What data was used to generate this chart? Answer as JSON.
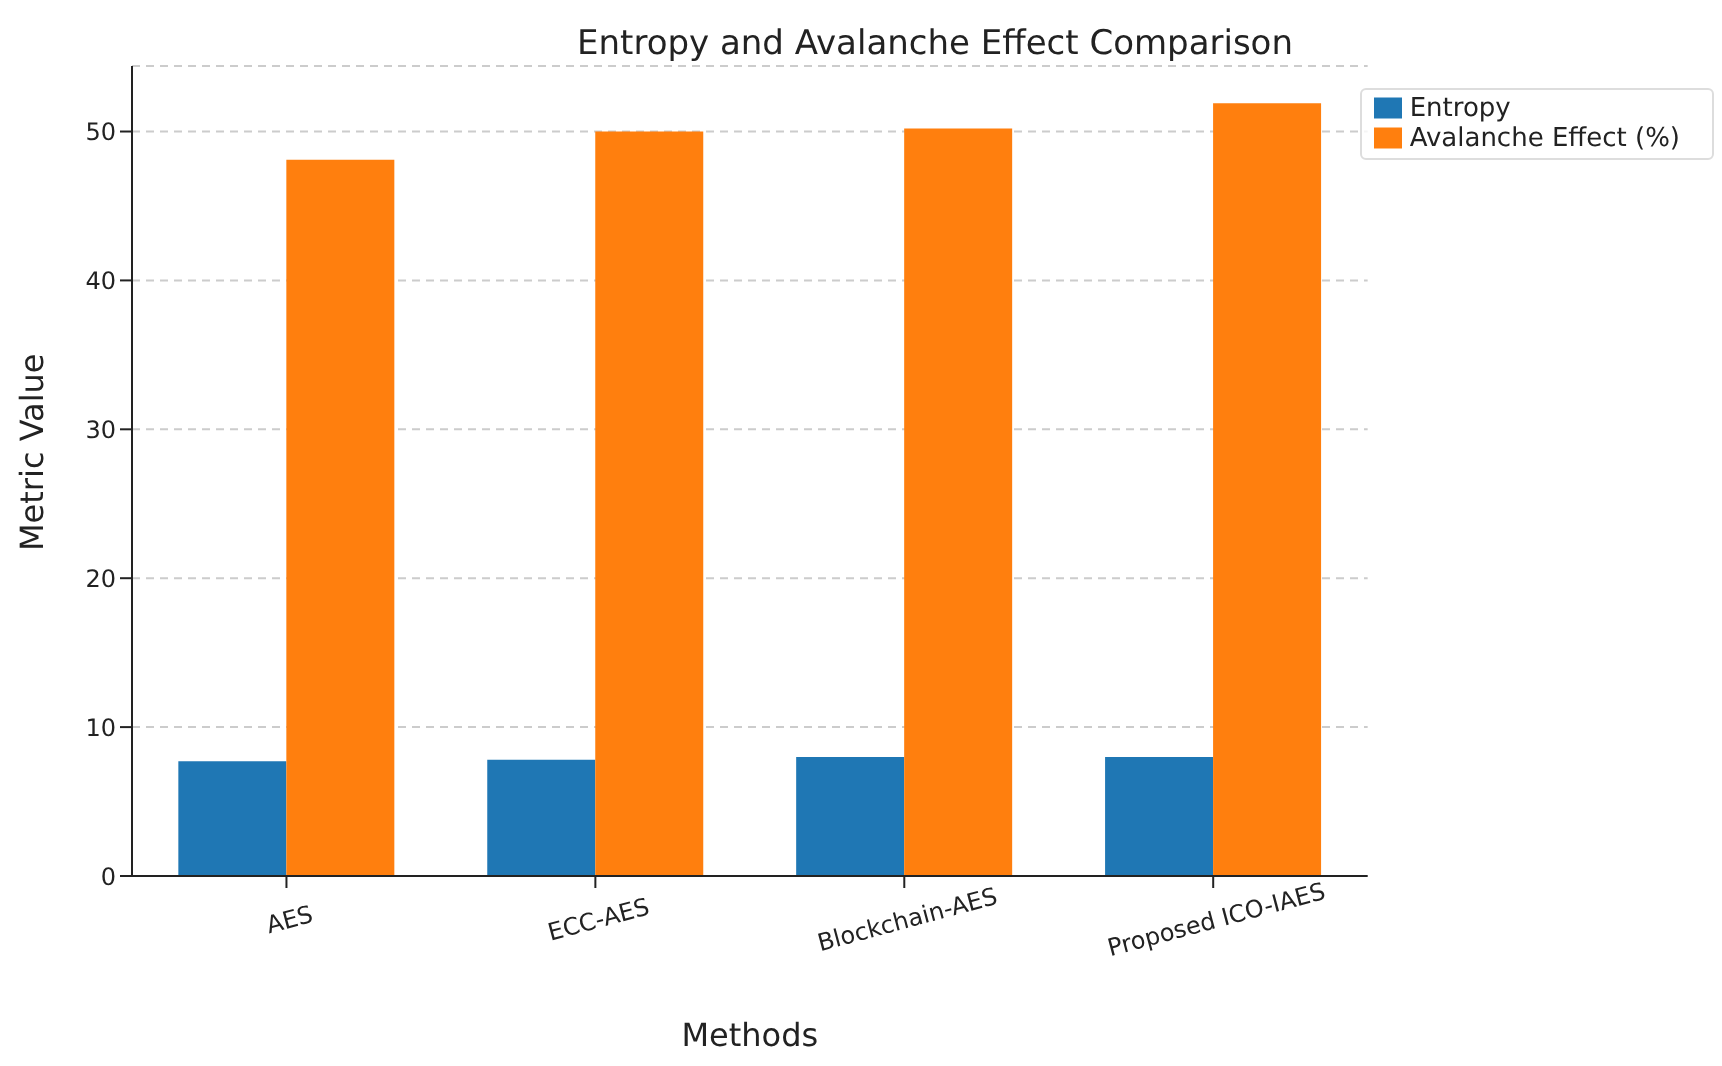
{
  "chart_data": {
    "type": "bar",
    "title": "Entropy and Avalanche Effect Comparison",
    "xlabel": "Methods",
    "ylabel": "Metric Value",
    "categories": [
      "AES",
      "ECC-AES",
      "Blockchain-AES",
      "Proposed ICO-IAES"
    ],
    "series": [
      {
        "name": "Entropy",
        "color": "#1f77b4",
        "values": [
          7.7,
          7.8,
          8.0,
          8.0
        ]
      },
      {
        "name": "Avalanche Effect (%)",
        "color": "#ff7f0e",
        "values": [
          48.1,
          50.0,
          50.2,
          51.9
        ]
      }
    ],
    "ylim": [
      0,
      54.4
    ],
    "yticks": [
      0,
      10,
      20,
      30,
      40,
      50
    ],
    "grid": "y",
    "legend": "top right"
  }
}
